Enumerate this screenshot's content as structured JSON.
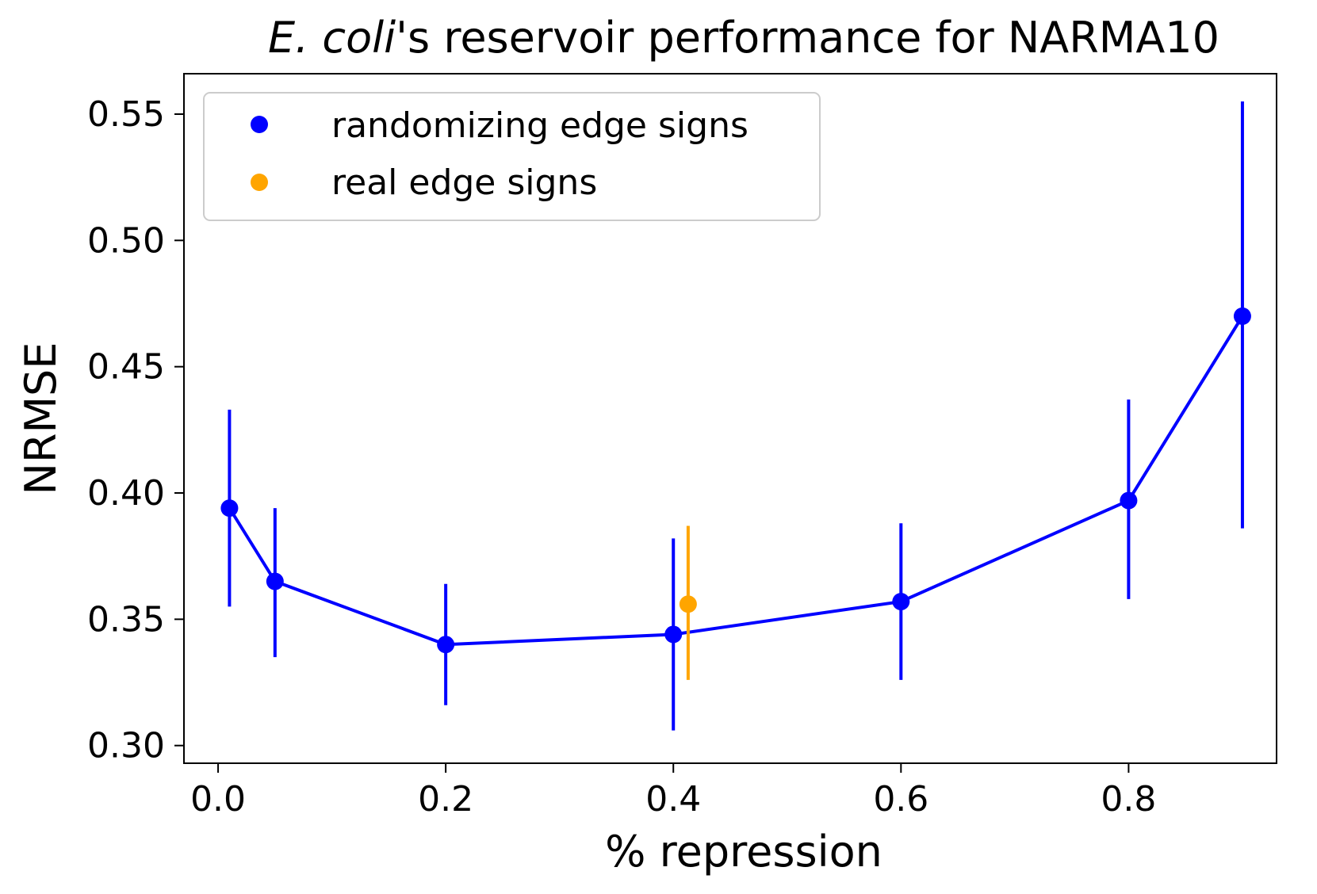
{
  "chart_data": {
    "type": "scatter",
    "title_italic": "E. coli",
    "title_rest": "'s reservoir performance for NARMA10",
    "xlabel": "% repression",
    "ylabel": "NRMSE",
    "xlim": [
      -0.03,
      0.93
    ],
    "ylim": [
      0.293,
      0.566
    ],
    "xticks": [
      0.0,
      0.2,
      0.4,
      0.6,
      0.8
    ],
    "xtick_labels": [
      "0.0",
      "0.2",
      "0.4",
      "0.6",
      "0.8"
    ],
    "yticks": [
      0.3,
      0.35,
      0.4,
      0.45,
      0.5,
      0.55
    ],
    "ytick_labels": [
      "0.30",
      "0.35",
      "0.40",
      "0.45",
      "0.50",
      "0.55"
    ],
    "legend_position": "upper-left",
    "series": [
      {
        "name": "randomizing edge signs",
        "color": "#0000ff",
        "connected": true,
        "points": [
          {
            "x": 0.01,
            "y": 0.394,
            "err_low": 0.355,
            "err_high": 0.433
          },
          {
            "x": 0.05,
            "y": 0.365,
            "err_low": 0.335,
            "err_high": 0.394
          },
          {
            "x": 0.2,
            "y": 0.34,
            "err_low": 0.316,
            "err_high": 0.364
          },
          {
            "x": 0.4,
            "y": 0.344,
            "err_low": 0.306,
            "err_high": 0.382
          },
          {
            "x": 0.6,
            "y": 0.357,
            "err_low": 0.326,
            "err_high": 0.388
          },
          {
            "x": 0.8,
            "y": 0.397,
            "err_low": 0.358,
            "err_high": 0.437
          },
          {
            "x": 0.9,
            "y": 0.47,
            "err_low": 0.386,
            "err_high": 0.555
          }
        ]
      },
      {
        "name": "real edge signs",
        "color": "#ffa500",
        "connected": false,
        "points": [
          {
            "x": 0.413,
            "y": 0.356,
            "err_low": 0.326,
            "err_high": 0.387
          }
        ]
      }
    ]
  }
}
